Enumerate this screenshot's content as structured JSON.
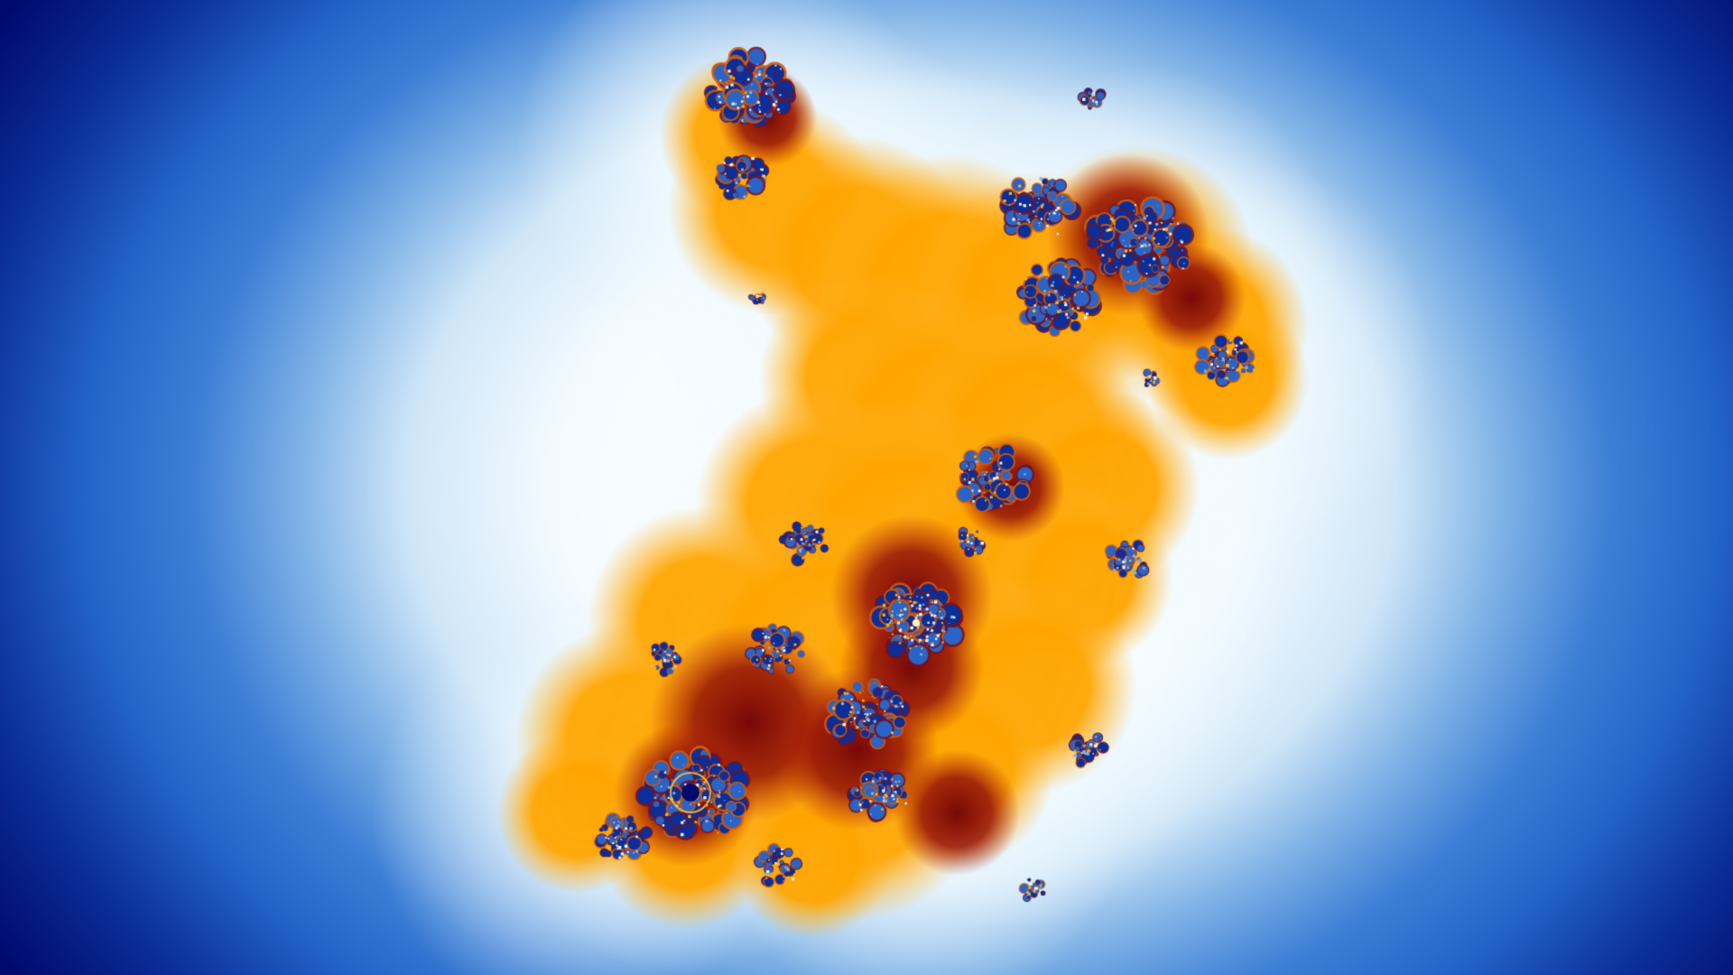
{
  "image": {
    "subject": "fractal",
    "palette": {
      "deep_navy": "#000a6e",
      "royal_blue": "#2364c8",
      "sky_blue": "#7fb2e6",
      "halo_white": "#f4fbff",
      "orange": "#ffa500",
      "dark_red": "#8b0a0a"
    }
  }
}
